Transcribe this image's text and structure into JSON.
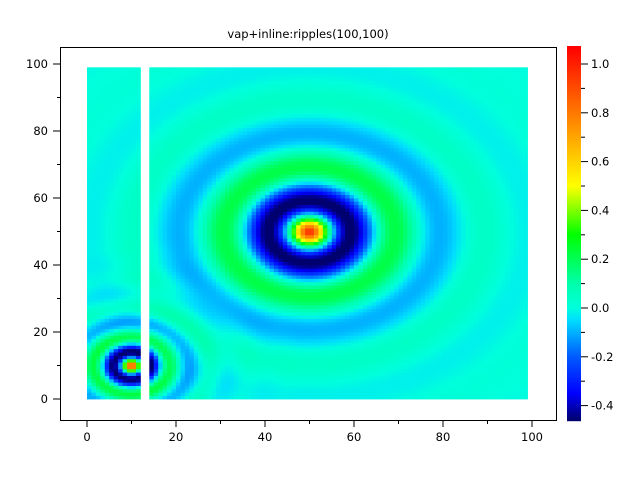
{
  "chart_data": {
    "type": "heatmap",
    "title": "vap+inline:ripples(100,100)",
    "xlabel": "",
    "ylabel": "",
    "xlim": [
      -6,
      106
    ],
    "ylim": [
      -6,
      105
    ],
    "x_ticks": [
      "0",
      "20",
      "40",
      "60",
      "80",
      "100"
    ],
    "y_ticks": [
      "0",
      "20",
      "40",
      "60",
      "80",
      "100"
    ],
    "grid": false,
    "colorbar": {
      "zlim": [
        -0.46,
        1.07
      ],
      "ticks": [
        "-0.4",
        "-0.2",
        "0.0",
        "0.2",
        "0.4",
        "0.6",
        "0.8",
        "1.0"
      ],
      "colormap": "jet",
      "placement": "right"
    },
    "grid_size": [
      100,
      100
    ],
    "missing_columns": [
      12,
      13
    ],
    "ripples": [
      {
        "center": [
          50,
          50
        ],
        "amplitude": 1.0,
        "peak": 1.0,
        "trough": -0.46
      },
      {
        "center": [
          10,
          10
        ],
        "amplitude": 1.0,
        "peak": 1.0,
        "trough": -0.46
      }
    ]
  }
}
